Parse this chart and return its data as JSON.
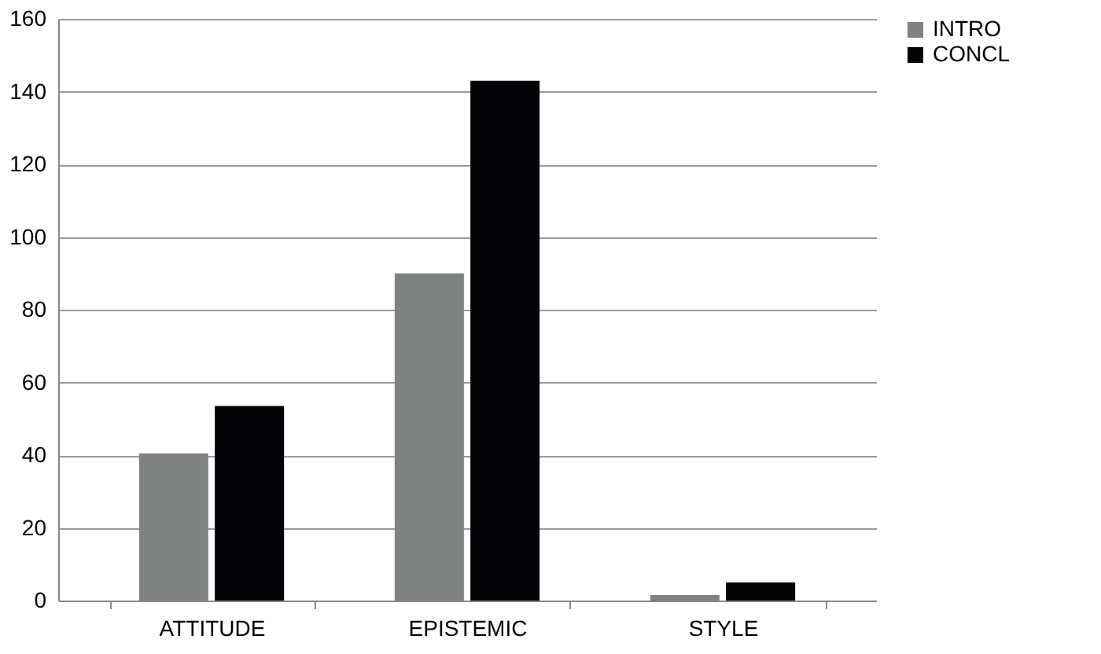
{
  "chart_data": {
    "type": "bar",
    "categories": [
      "ATTITUDE",
      "EPISTEMIC",
      "STYLE"
    ],
    "series": [
      {
        "name": "INTRO",
        "color": "#7f8282",
        "values": [
          40.5,
          90,
          1.5
        ]
      },
      {
        "name": "CONCL",
        "color": "#020207",
        "values": [
          53.5,
          143,
          5
        ]
      }
    ],
    "ylim": [
      0,
      160
    ],
    "yticks": [
      0,
      20,
      40,
      60,
      80,
      100,
      120,
      140,
      160
    ],
    "grid": "y",
    "legend": "right"
  }
}
